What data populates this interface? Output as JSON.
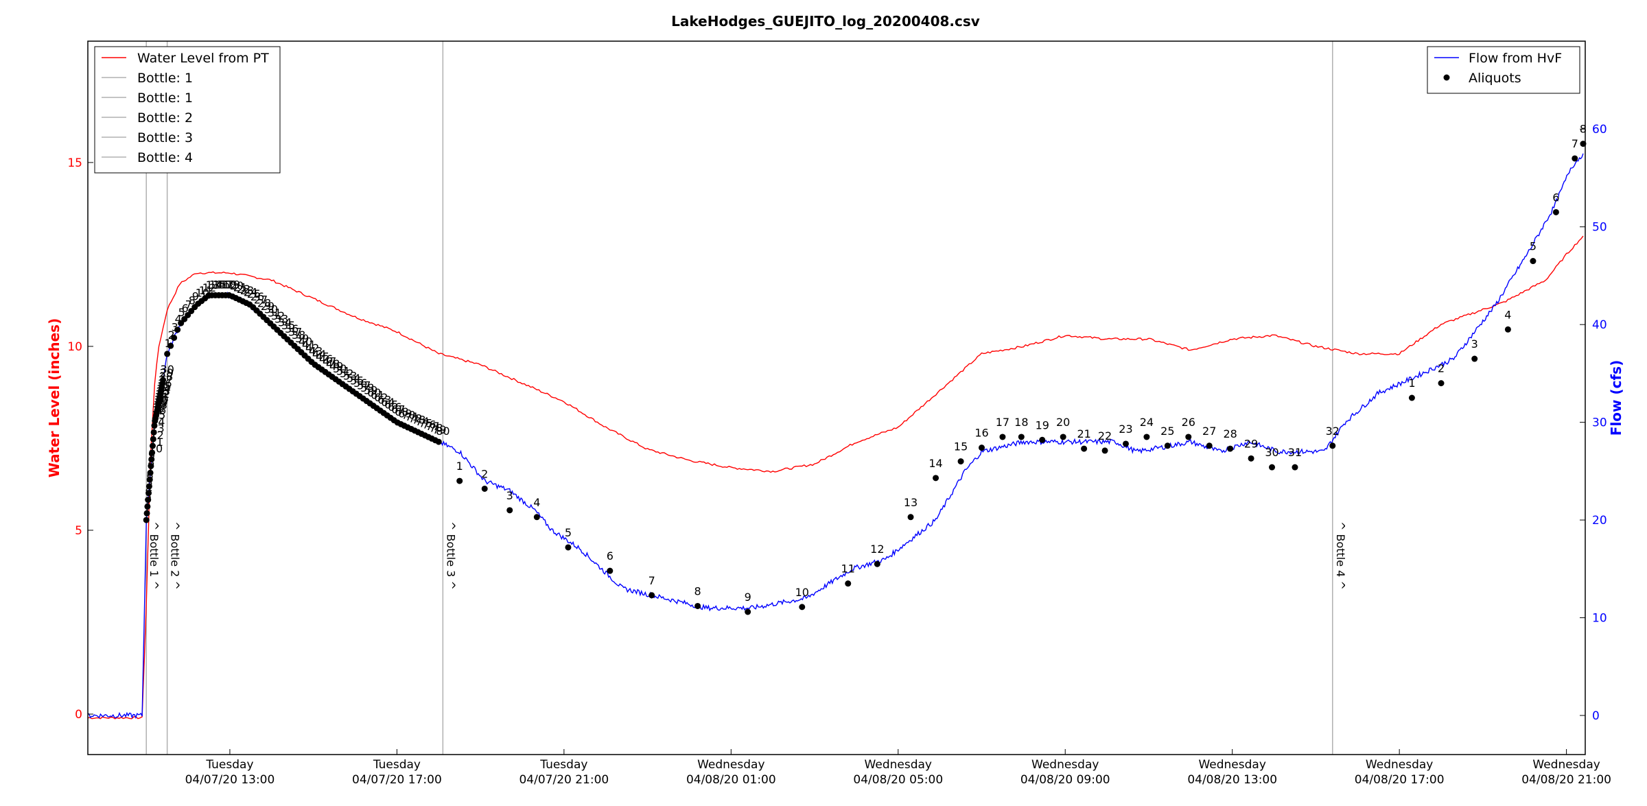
{
  "chart_data": {
    "type": "line",
    "title": "LakeHodges_GUEJITO_log_20200408.csv",
    "ylabel": "Water Level (inches)",
    "y2label": "Flow (cfs)",
    "xlabel": "",
    "ylim": [
      -1.1,
      18.3
    ],
    "y2lim": [
      -4,
      69
    ],
    "xlim_hours": [
      9.6,
      23.95
    ],
    "y_ticks": [
      0,
      5,
      10,
      15
    ],
    "y2_ticks": [
      0,
      10,
      20,
      30,
      40,
      50,
      60
    ],
    "x_ticks": [
      {
        "line1": "Tuesday",
        "line2": "04/07/20 13:00"
      },
      {
        "line1": "Tuesday",
        "line2": "04/07/20 17:00"
      },
      {
        "line1": "Tuesday",
        "line2": "04/07/20 21:00"
      },
      {
        "line1": "Wednesday",
        "line2": "04/08/20 01:00"
      },
      {
        "line1": "Wednesday",
        "line2": "04/08/20 05:00"
      },
      {
        "line1": "Wednesday",
        "line2": "04/08/20 09:00"
      },
      {
        "line1": "Wednesday",
        "line2": "04/08/20 13:00"
      },
      {
        "line1": "Wednesday",
        "line2": "04/08/20 17:00"
      },
      {
        "line1": "Wednesday",
        "line2": "04/08/20 21:00"
      }
    ],
    "x_tick_hours": [
      13,
      17,
      21,
      25,
      29,
      33,
      37,
      41,
      45
    ],
    "legend_left": {
      "placement": "top-left",
      "entries": [
        {
          "label": "Water Level from PT",
          "color": "#ff0000"
        },
        {
          "label": "Bottle: 1",
          "color": "#b0b0b0"
        },
        {
          "label": "Bottle: 1",
          "color": "#b0b0b0"
        },
        {
          "label": "Bottle: 2",
          "color": "#b0b0b0"
        },
        {
          "label": "Bottle: 3",
          "color": "#b0b0b0"
        },
        {
          "label": "Bottle: 4",
          "color": "#b0b0b0"
        }
      ]
    },
    "legend_right": {
      "placement": "top-right",
      "entries": [
        {
          "label": "Flow from HvF",
          "color": "#0000ff",
          "kind": "line"
        },
        {
          "label": "Aliquots",
          "color": "#000000",
          "kind": "dot"
        }
      ]
    },
    "colors": {
      "water_level": "#ff0000",
      "flow": "#0000ff",
      "aliquots": "#000000",
      "bottle_line": "#b0b0b0",
      "left_axis": "#ff0000",
      "right_axis": "#0000ff"
    },
    "bottle_markers": [
      {
        "x": 11.0,
        "label": "^ Bottle 1 ^"
      },
      {
        "x": 11.5,
        "label": "^ Bottle 2 ^"
      },
      {
        "x": 18.1,
        "label": "^ Bottle 3 ^"
      },
      {
        "x": 39.4,
        "label": "^ Bottle 4 ^"
      }
    ],
    "water_level_series": {
      "name": "Water Level from PT",
      "x": [
        9.6,
        10.9,
        11.0,
        11.1,
        11.2,
        11.3,
        11.5,
        11.8,
        12.2,
        13.0,
        14.0,
        15.0,
        16.0,
        17.0,
        18.0,
        19.0,
        20.0,
        21.0,
        22.0,
        23.0,
        24.0,
        25.0,
        26.0,
        27.0,
        28.0,
        29.0,
        30.0,
        31.0,
        32.0,
        33.0,
        34.0,
        35.0,
        36.0,
        37.0,
        38.0,
        39.0,
        40.0,
        41.0,
        42.0,
        43.0,
        43.5,
        44.0,
        44.5,
        45.0,
        45.4
      ],
      "y": [
        -0.1,
        -0.1,
        3.0,
        7.0,
        9.0,
        10.0,
        11.0,
        11.7,
        12.0,
        12.0,
        11.8,
        11.3,
        10.8,
        10.4,
        9.8,
        9.5,
        9.0,
        8.5,
        7.8,
        7.2,
        6.9,
        6.7,
        6.6,
        6.8,
        7.4,
        7.8,
        8.8,
        9.8,
        10.0,
        10.3,
        10.2,
        10.2,
        9.9,
        10.2,
        10.3,
        10.0,
        9.8,
        9.8,
        10.6,
        11.0,
        11.2,
        11.5,
        11.8,
        12.5,
        13.0
      ]
    },
    "flow_series": {
      "name": "Flow from HvF",
      "x": [
        9.6,
        10.9,
        11.0,
        11.1,
        11.2,
        11.35,
        11.5,
        11.8,
        12.2,
        12.5,
        13.0,
        13.5,
        14.0,
        15.0,
        16.0,
        17.0,
        18.0,
        18.5,
        19.1,
        19.7,
        20.3,
        20.7,
        21.4,
        22.4,
        23.4,
        24.4,
        25.5,
        26.8,
        27.9,
        28.7,
        29.9,
        30.6,
        31.0,
        32.0,
        32.9,
        33.7,
        34.2,
        34.7,
        35.4,
        36.0,
        36.7,
        37.4,
        38.1,
        39.2,
        39.7,
        40.5,
        41.3,
        42.3,
        43.3,
        44.1,
        44.7,
        45.1,
        45.4
      ],
      "y": [
        0,
        0,
        20,
        25,
        30,
        33,
        37,
        40,
        42,
        43,
        43,
        42,
        40,
        36,
        33,
        30,
        28,
        27,
        24,
        23,
        21,
        19,
        17,
        13,
        12,
        11,
        11,
        12,
        15,
        16,
        20,
        25,
        27,
        28,
        28,
        28,
        28,
        27,
        27.5,
        28,
        27,
        28,
        27,
        27,
        30,
        33,
        34.5,
        36.5,
        42,
        47.5,
        52,
        56,
        57.5
      ]
    },
    "aliquot_groups": [
      {
        "bottle": 1,
        "count": 30,
        "x_start": 11.0,
        "x_end": 11.4,
        "labels_shown": true
      },
      {
        "bottle": 2,
        "count": 80,
        "x_start": 11.5,
        "x_end": 18.0,
        "labels_shown": true
      },
      {
        "bottle": 3,
        "count": 32,
        "x_start": 18.1,
        "x_end": 39.4,
        "labels_shown": true
      },
      {
        "bottle": 4,
        "count": 8,
        "x_start": 39.4,
        "x_end": 45.4,
        "labels_shown": true
      }
    ],
    "aliquots_bottle3": [
      {
        "n": "1",
        "x": 18.5,
        "y": 24
      },
      {
        "n": "2",
        "x": 19.1,
        "y": 23.2
      },
      {
        "n": "3",
        "x": 19.7,
        "y": 21
      },
      {
        "n": "4",
        "x": 20.35,
        "y": 20.3
      },
      {
        "n": "5",
        "x": 21.1,
        "y": 17.2
      },
      {
        "n": "6",
        "x": 22.1,
        "y": 14.8
      },
      {
        "n": "7",
        "x": 23.1,
        "y": 12.3
      },
      {
        "n": "8",
        "x": 24.2,
        "y": 11.2
      },
      {
        "n": "9",
        "x": 25.4,
        "y": 10.6
      },
      {
        "n": "10",
        "x": 26.7,
        "y": 11.1
      },
      {
        "n": "11",
        "x": 27.8,
        "y": 13.5
      },
      {
        "n": "12",
        "x": 28.5,
        "y": 15.5
      },
      {
        "n": "13",
        "x": 29.3,
        "y": 20.3
      },
      {
        "n": "14",
        "x": 29.9,
        "y": 24.3
      },
      {
        "n": "15",
        "x": 30.5,
        "y": 26
      },
      {
        "n": "16",
        "x": 31.0,
        "y": 27.4
      },
      {
        "n": "17",
        "x": 31.5,
        "y": 28.5
      },
      {
        "n": "18",
        "x": 31.95,
        "y": 28.5
      },
      {
        "n": "19",
        "x": 32.45,
        "y": 28.2
      },
      {
        "n": "20",
        "x": 32.95,
        "y": 28.5
      },
      {
        "n": "21",
        "x": 33.45,
        "y": 27.3
      },
      {
        "n": "22",
        "x": 33.95,
        "y": 27.1
      },
      {
        "n": "23",
        "x": 34.45,
        "y": 27.8
      },
      {
        "n": "24",
        "x": 34.95,
        "y": 28.5
      },
      {
        "n": "25",
        "x": 35.45,
        "y": 27.6
      },
      {
        "n": "26",
        "x": 35.95,
        "y": 28.5
      },
      {
        "n": "27",
        "x": 36.45,
        "y": 27.6
      },
      {
        "n": "28",
        "x": 36.95,
        "y": 27.3
      },
      {
        "n": "29",
        "x": 37.45,
        "y": 26.3
      },
      {
        "n": "30",
        "x": 37.95,
        "y": 25.4
      },
      {
        "n": "31",
        "x": 38.5,
        "y": 25.4
      },
      {
        "n": "32",
        "x": 39.4,
        "y": 27.6
      }
    ],
    "aliquots_bottle4": [
      {
        "n": "1",
        "x": 41.3,
        "y": 32.5
      },
      {
        "n": "2",
        "x": 42.0,
        "y": 34
      },
      {
        "n": "3",
        "x": 42.8,
        "y": 36.5
      },
      {
        "n": "4",
        "x": 43.6,
        "y": 39.5
      },
      {
        "n": "5",
        "x": 44.2,
        "y": 46.5
      },
      {
        "n": "6",
        "x": 44.75,
        "y": 51.5
      },
      {
        "n": "7",
        "x": 45.2,
        "y": 57
      },
      {
        "n": "8",
        "x": 45.4,
        "y": 58.5
      }
    ]
  }
}
